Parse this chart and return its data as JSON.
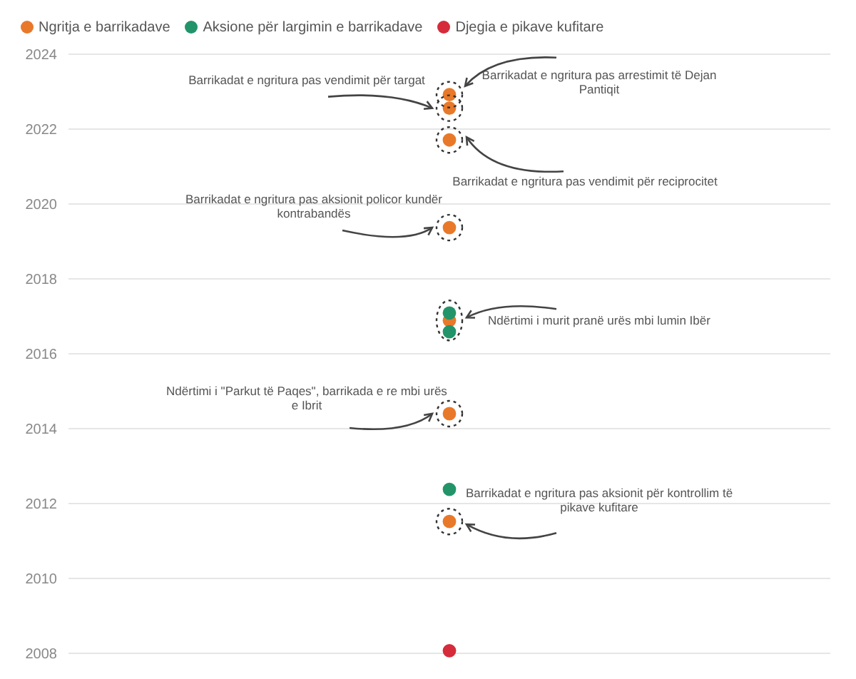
{
  "chart_data": {
    "type": "scatter",
    "categories": [
      null
    ],
    "series": [
      {
        "name": "Ngritja e barrikadave",
        "color": "#e8792a",
        "values": [
          2022.92
        ]
      },
      {
        "color": "#e8792a",
        "values": [
          2022.56
        ]
      },
      {
        "color": "#e8792a",
        "values": [
          2021.71
        ]
      },
      {
        "color": "#e8792a",
        "values": [
          2019.37
        ]
      },
      {
        "color": "#e8792a",
        "values": [
          2016.89
        ]
      },
      {
        "color": "#e8792a",
        "values": [
          2014.4
        ]
      },
      {
        "color": "#e8792a",
        "values": [
          2011.52
        ]
      },
      {
        "name": "Aksione për largimin e barrikadave",
        "color": "#23946a",
        "values": [
          2017.09
        ]
      },
      {
        "color": "#23946a",
        "values": [
          2016.59
        ]
      },
      {
        "color": "#23946a",
        "values": [
          2012.38
        ]
      },
      {
        "name": "Djegia e pikave kufitare",
        "color": "#d62b3a",
        "values": [
          2008.07
        ]
      }
    ],
    "ylim": [
      2008,
      2024
    ],
    "yticks": [
      2008,
      2010,
      2012,
      2014,
      2016,
      2018,
      2020,
      2022,
      2024
    ],
    "grid": "y",
    "legend": "top left",
    "marker": "circle",
    "tick_labels": "y",
    "annotations": [
      "Barrikadat e ngritura pas vendimit për targat",
      "Barrikadat e ngritura pas arrestimit të Dejan Pantiqit",
      "Barrikadat e ngritura pas vendimit për reciprocitet",
      "Barrikadat e ngritura pas aksionit policor kundër kontrabandës",
      "Ndërtimi i murit pranë urës mbi lumin Ibër",
      "Ndërtimi i \"Parkut të Paqes\", barrikada e re mbi urës e Ibrit",
      "Barrikadat e ngritura pas aksionit për kontrollim të pikave kufitare"
    ]
  }
}
